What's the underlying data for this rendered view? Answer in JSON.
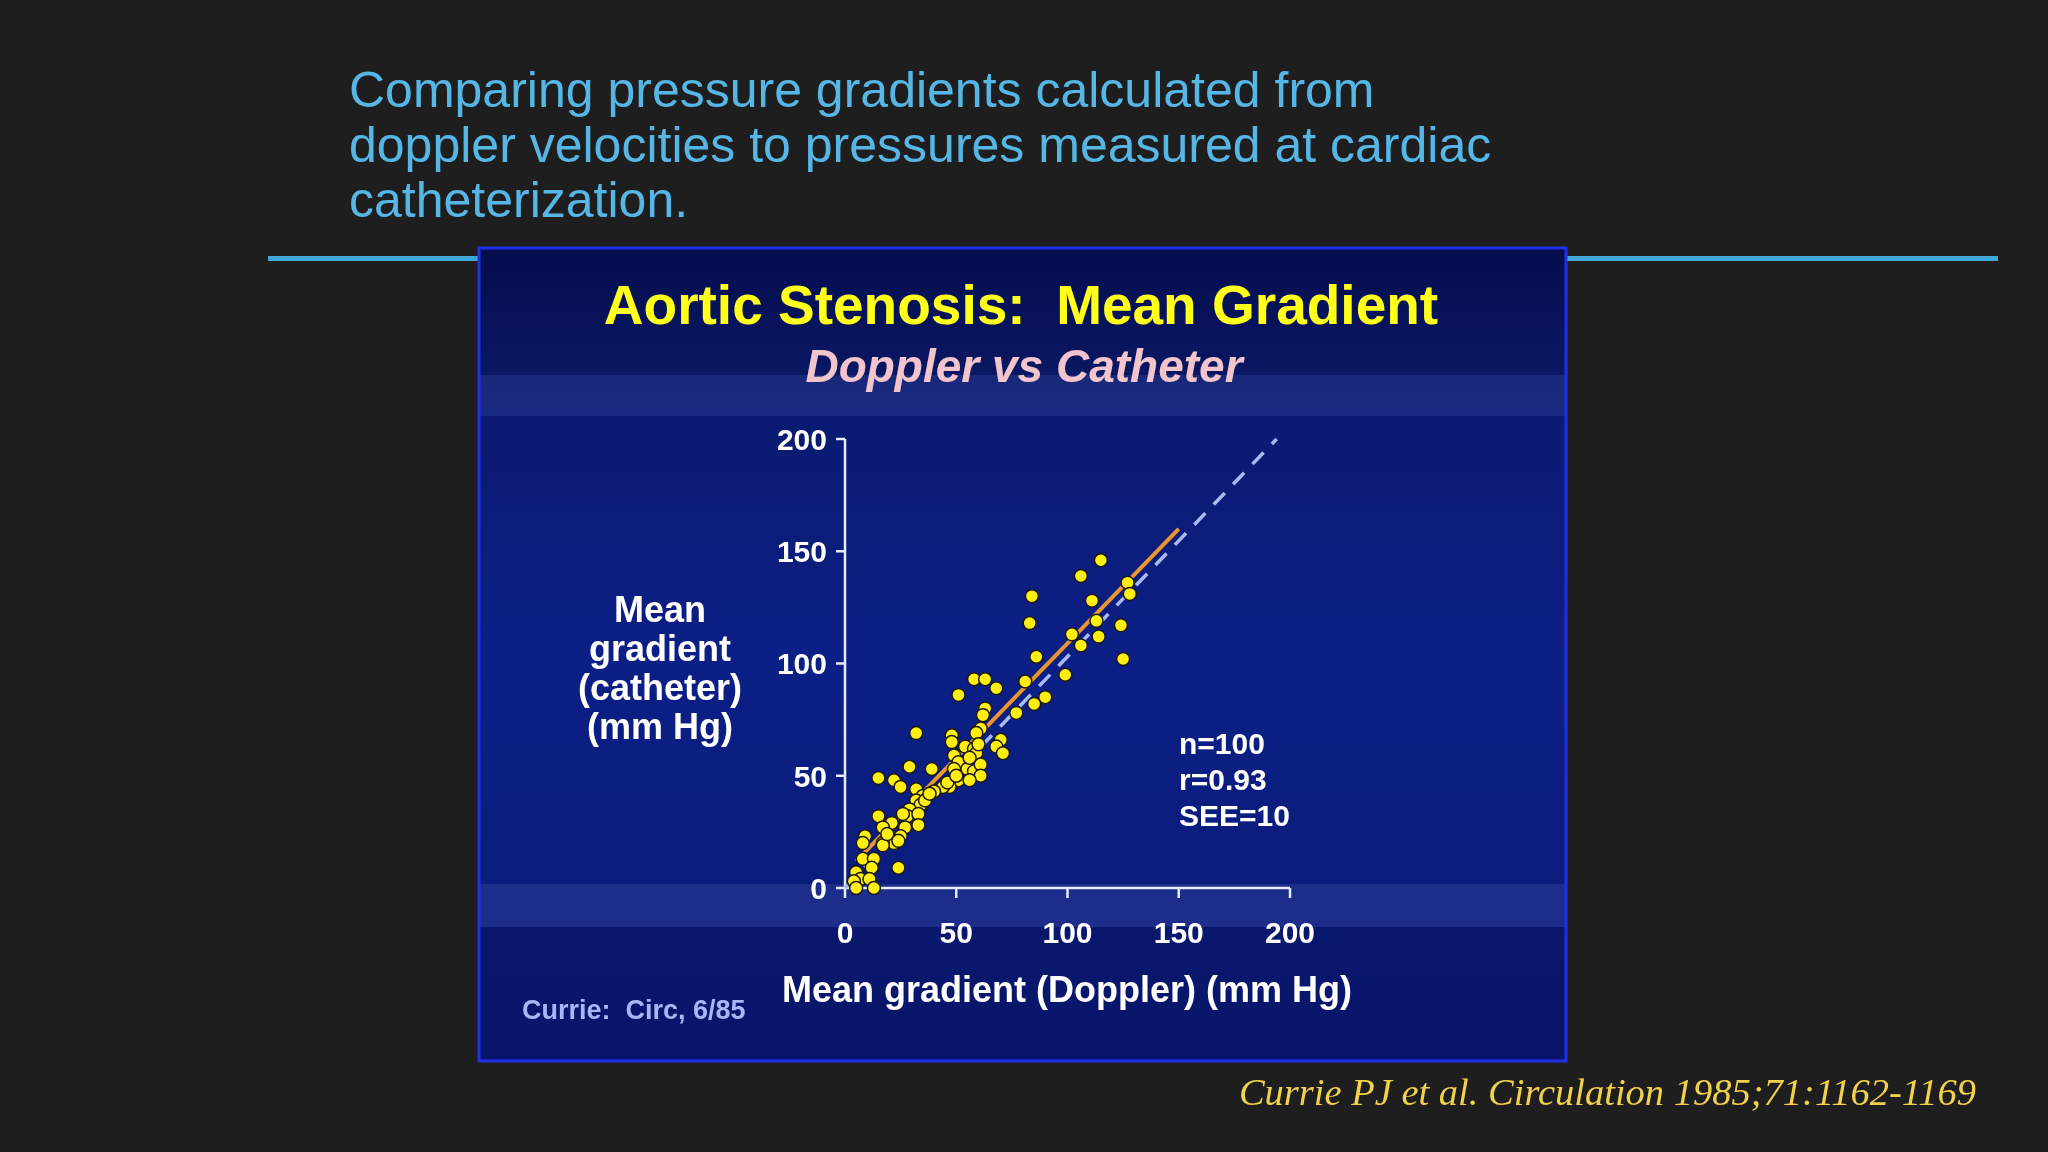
{
  "chart_data": {
    "type": "scatter",
    "title": "Aortic Stenosis:  Mean Gradient",
    "subtitle": "Doppler vs Catheter",
    "xlabel": "Mean gradient (Doppler) (mm Hg)",
    "ylabel": "Mean gradient (catheter) (mm Hg)",
    "annotations": [
      "Comparing pressure gradients calculated from doppler velocities to pressures measured at cardiac catheterization.",
      "n=100",
      "r=0.93",
      "SEE=10",
      "Currie:  Circ, 6/85",
      "Currie PJ et al. Circulation 1985;71:1162-1169"
    ],
    "xlim": [
      0,
      200
    ],
    "ylim": [
      0,
      200
    ],
    "xticks": [
      0,
      50,
      100,
      150,
      200
    ],
    "yticks": [
      0,
      50,
      100,
      150,
      200
    ],
    "series": [
      {
        "type": "line",
        "color": "#a9baf2",
        "line_style": "dashed",
        "marker": "none",
        "x": [
          0,
          194
        ],
        "values": [
          0,
          200
        ]
      },
      {
        "type": "line",
        "color": "#e8962e",
        "line_style": "solid",
        "marker": "none",
        "x": [
          5,
          150
        ],
        "values": [
          12,
          160
        ]
      },
      {
        "type": "scatter",
        "color": "#ffee10",
        "marker": "circle",
        "x": [
          115,
          106,
          84,
          127,
          128,
          111,
          83,
          113,
          124,
          102,
          114,
          106,
          125,
          86,
          99,
          81,
          58,
          63,
          68,
          51,
          85,
          90,
          77,
          63,
          62,
          61,
          59,
          32,
          48,
          70,
          68,
          71,
          48,
          54,
          58,
          59,
          49,
          51,
          55,
          58,
          61,
          61,
          49,
          51,
          47,
          44,
          40,
          39,
          29,
          15,
          22,
          25,
          32,
          35,
          32,
          34,
          29,
          28,
          27,
          33,
          33,
          36,
          15,
          21,
          17,
          25,
          22,
          17,
          9,
          8,
          17,
          8,
          13,
          12,
          5,
          7,
          4,
          11,
          24,
          5,
          13,
          38,
          46,
          56,
          50,
          56,
          26,
          19,
          24,
          60
        ],
        "values": [
          146,
          139,
          130,
          136,
          131,
          128,
          118,
          119,
          117,
          113,
          112,
          108,
          102,
          103,
          95,
          92,
          93,
          93,
          89,
          86,
          82,
          85,
          78,
          80,
          77,
          71,
          69,
          69,
          68,
          66,
          63,
          60,
          65,
          63,
          62,
          60,
          59,
          56,
          53,
          52,
          55,
          50,
          53,
          48,
          45,
          45,
          43,
          53,
          54,
          49,
          48,
          45,
          44,
          41,
          39,
          37,
          35,
          32,
          27,
          33,
          28,
          39,
          32,
          29,
          27,
          23,
          20,
          20,
          23,
          20,
          19,
          13,
          13,
          9,
          7,
          4,
          3,
          4,
          9,
          0,
          0,
          42,
          47,
          58,
          50,
          48,
          33,
          24,
          21,
          64
        ]
      }
    ]
  }
}
